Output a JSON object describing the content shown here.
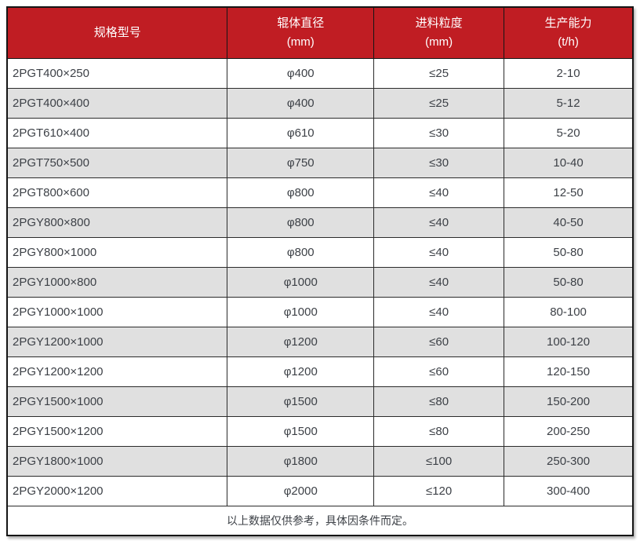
{
  "chart_data": {
    "type": "table",
    "columns": [
      {
        "line1": "规格型号",
        "line2": ""
      },
      {
        "line1": "辊体直径",
        "line2": "(mm)"
      },
      {
        "line1": "进料粒度",
        "line2": "(mm)"
      },
      {
        "line1": "生产能力",
        "line2": "(t/h)"
      }
    ],
    "rows": [
      [
        "2PGT400×250",
        "φ400",
        "≤25",
        "2-10"
      ],
      [
        "2PGT400×400",
        "φ400",
        "≤25",
        "5-12"
      ],
      [
        "2PGT610×400",
        "φ610",
        "≤30",
        "5-20"
      ],
      [
        "2PGT750×500",
        "φ750",
        "≤30",
        "10-40"
      ],
      [
        "2PGT800×600",
        "φ800",
        "≤40",
        "12-50"
      ],
      [
        "2PGY800×800",
        "φ800",
        "≤40",
        "40-50"
      ],
      [
        "2PGY800×1000",
        "φ800",
        "≤40",
        "50-80"
      ],
      [
        "2PGY1000×800",
        "φ1000",
        "≤40",
        "50-80"
      ],
      [
        "2PGY1000×1000",
        "φ1000",
        "≤40",
        "80-100"
      ],
      [
        "2PGY1200×1000",
        "φ1200",
        "≤60",
        "100-120"
      ],
      [
        "2PGY1200×1200",
        "φ1200",
        "≤60",
        "120-150"
      ],
      [
        "2PGY1500×1000",
        "φ1500",
        "≤80",
        "150-200"
      ],
      [
        "2PGY1500×1200",
        "φ1500",
        "≤80",
        "200-250"
      ],
      [
        "2PGY1800×1000",
        "φ1800",
        "≤100",
        "250-300"
      ],
      [
        "2PGY2000×1200",
        "φ2000",
        "≤120",
        "300-400"
      ]
    ],
    "footnote": "以上数据仅供参考，具体因条件而定。"
  },
  "colors": {
    "header_bg": "#C01D23",
    "header_text": "#FFFFFF",
    "row_bg": "#FFFFFF",
    "row_alt_bg": "#E0E0E0",
    "border": "#2B2B2B",
    "body_text": "#3D4147"
  }
}
